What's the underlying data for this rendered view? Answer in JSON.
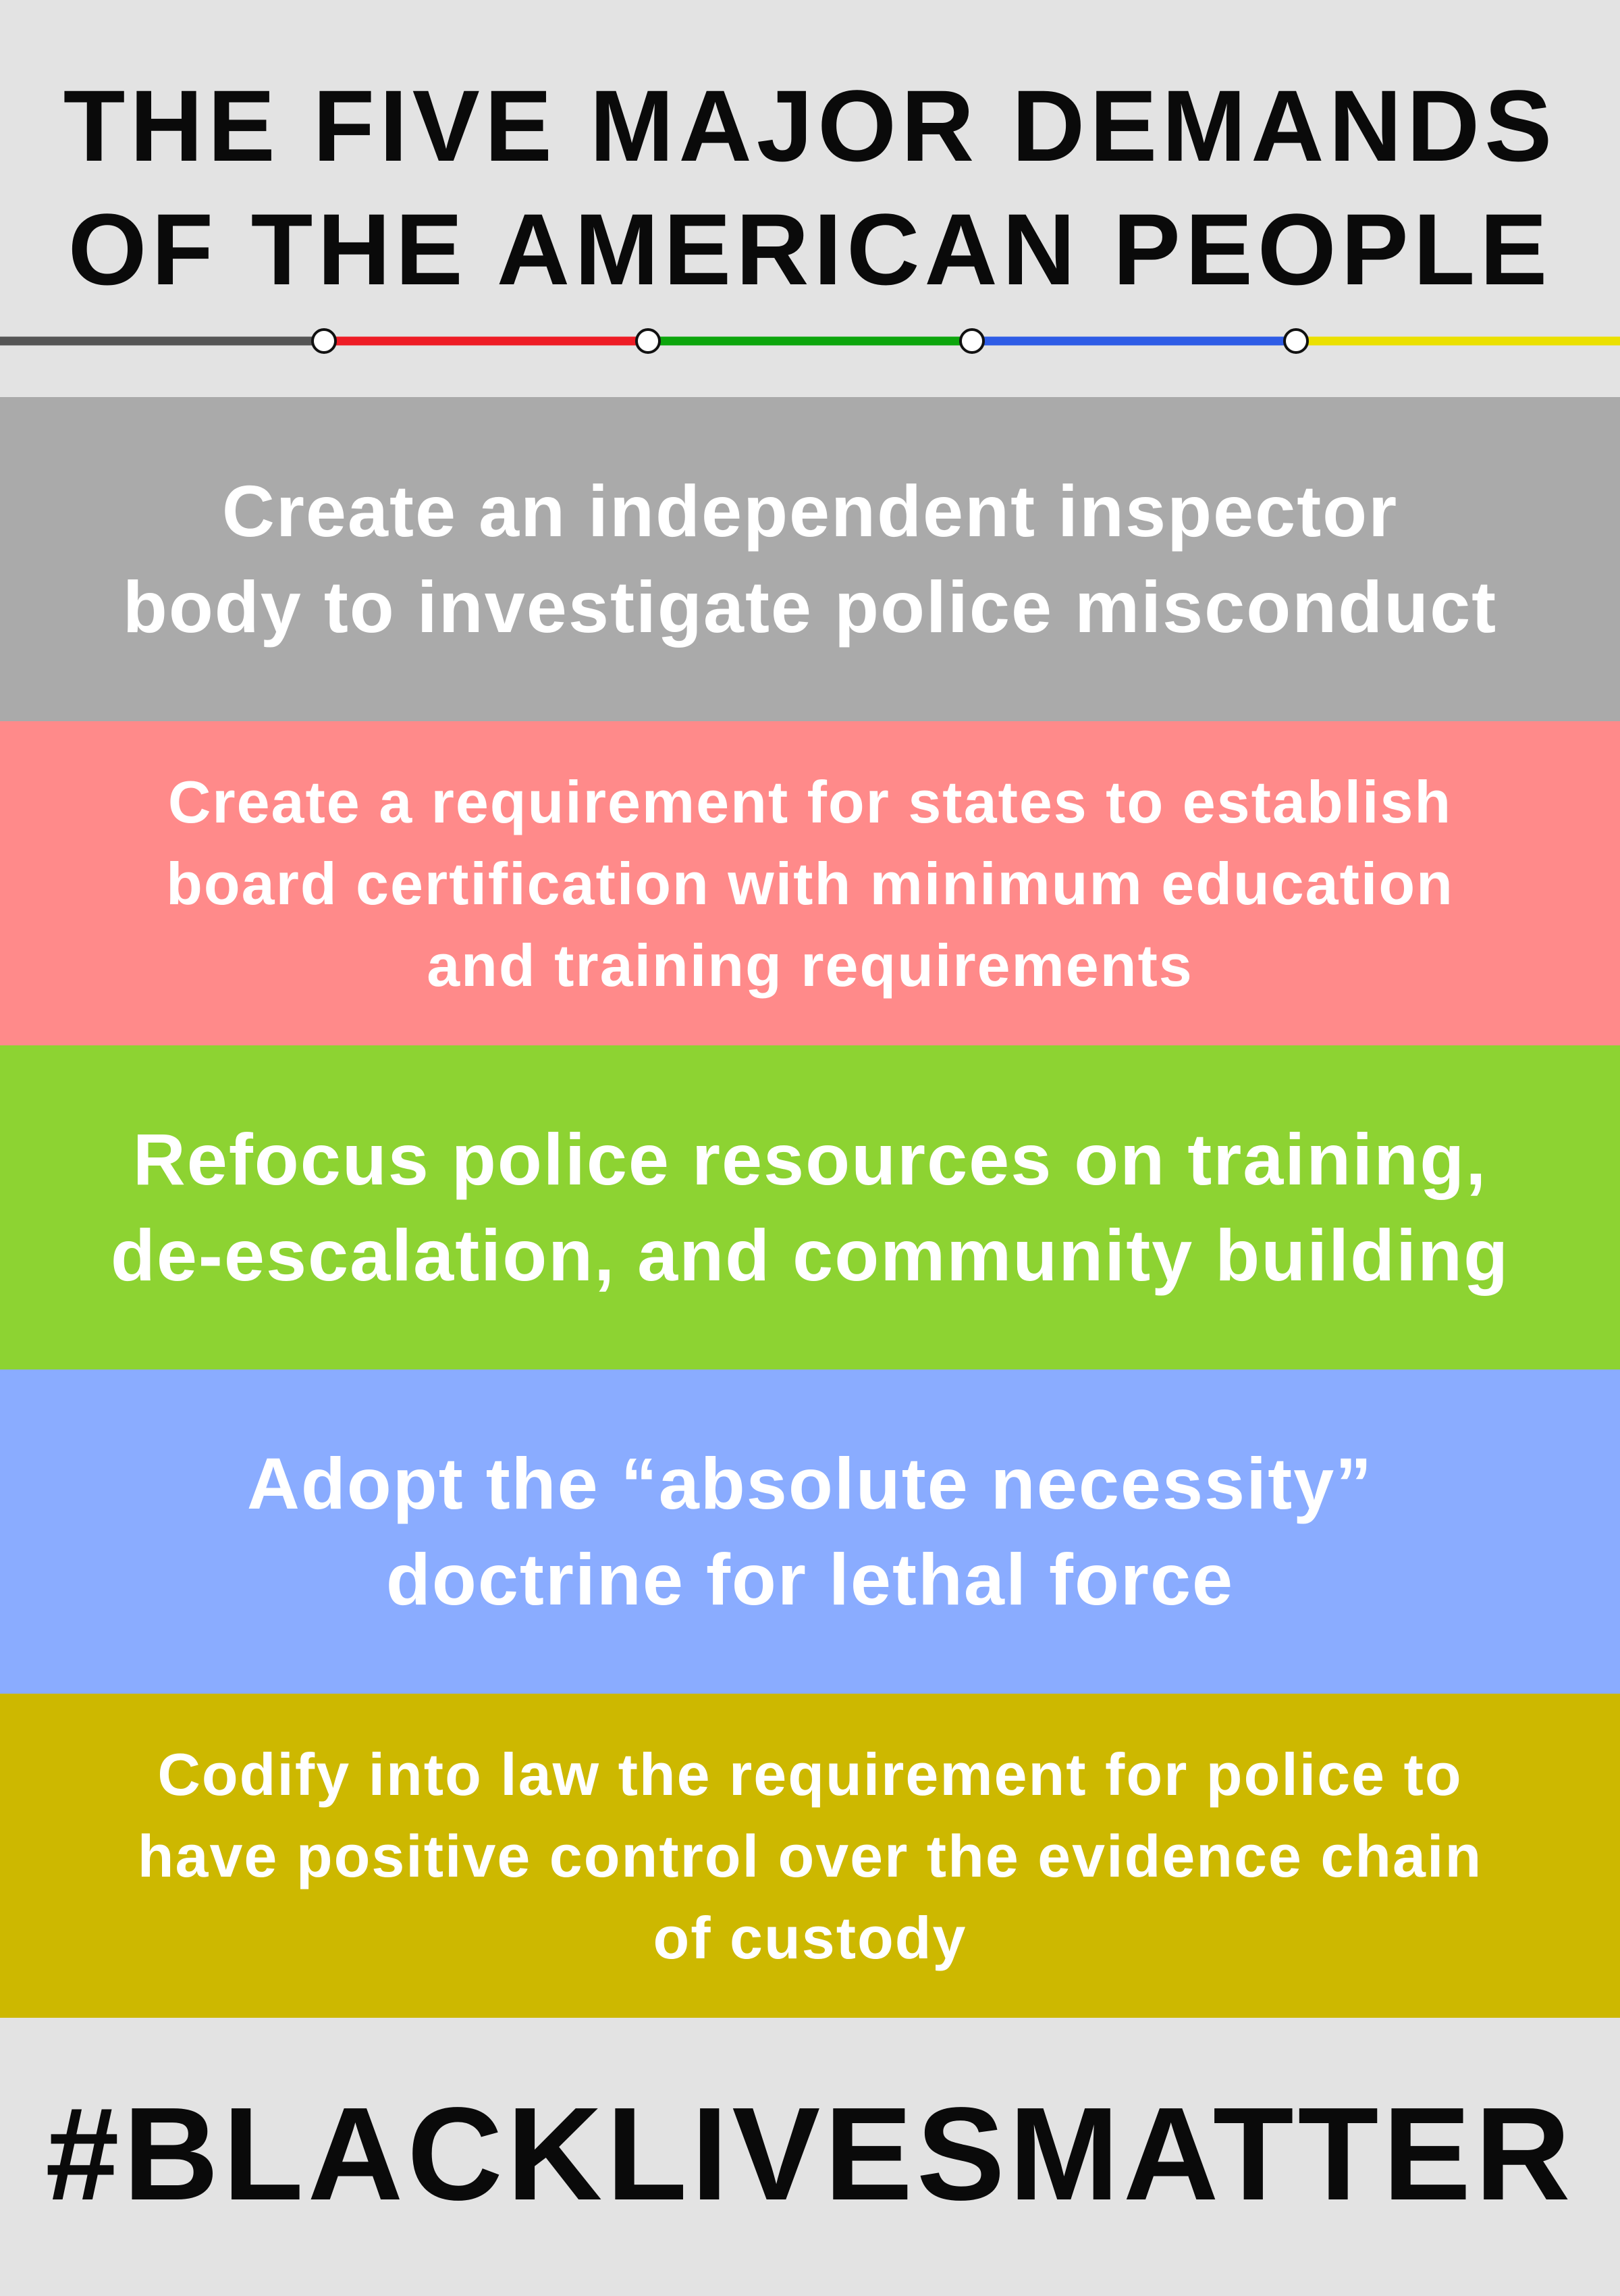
{
  "header": {
    "title_line1": "THE FIVE MAJOR DEMANDS",
    "title_line2": "OF THE AMERICAN PEOPLE"
  },
  "timeline": {
    "segment_colors": [
      "#555555",
      "#ee1c25",
      "#0da60d",
      "#2e5ce6",
      "#ebe000"
    ],
    "node_fill": "#ffffff",
    "node_stroke": "#111111"
  },
  "demands": [
    {
      "color": "#aaaaaa",
      "lines": [
        "Create an independent inspector",
        "body to investigate police misconduct"
      ]
    },
    {
      "color": "#ff8a8a",
      "lines": [
        "Create a requirement for states to establish",
        "board certification with minimum education",
        "and training requirements"
      ]
    },
    {
      "color": "#8dd332",
      "lines": [
        "Refocus police resources on training,",
        "de-escalation, and community building"
      ]
    },
    {
      "color": "#8aacff",
      "lines": [
        "Adopt the “absolute necessity”",
        "doctrine for lethal force"
      ]
    },
    {
      "color": "#cdb800",
      "lines": [
        "Codify into law the requirement for police to",
        "have positive control over the evidence chain",
        "of custody"
      ]
    }
  ],
  "footer": {
    "hashtag": "#BLACKLIVESMATTER"
  }
}
